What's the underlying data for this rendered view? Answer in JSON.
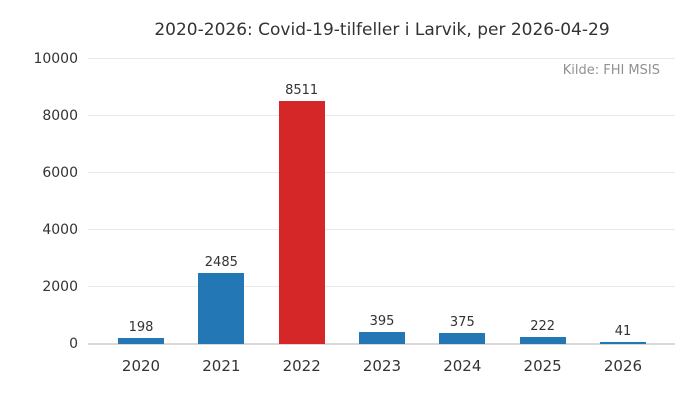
{
  "chart_data": {
    "type": "bar",
    "title": "2020-2026: Covid-19-tilfeller i Larvik, per 2026-04-29",
    "source_note": "Kilde: FHI MSIS",
    "categories": [
      "2020",
      "2021",
      "2022",
      "2023",
      "2024",
      "2025",
      "2026"
    ],
    "values": [
      198,
      2485,
      8511,
      395,
      375,
      222,
      41
    ],
    "value_labels": [
      "198",
      "2485",
      "8511",
      "395",
      "375",
      "222",
      "41"
    ],
    "xlabel": "",
    "ylabel": "",
    "ylim": [
      0,
      10000
    ],
    "yticks": [
      0,
      2000,
      4000,
      6000,
      8000,
      10000
    ],
    "grid": "horizontal",
    "legend": "none",
    "bar_color_default": "#2277b4",
    "bar_color_highlight": "#d62728",
    "highlight_index": 2,
    "text_color": "#333333",
    "source_color": "#919191",
    "gridline_color": "#e9e9e9",
    "axisline_color": "#d9d9d9",
    "background_color": "#ffffff"
  }
}
